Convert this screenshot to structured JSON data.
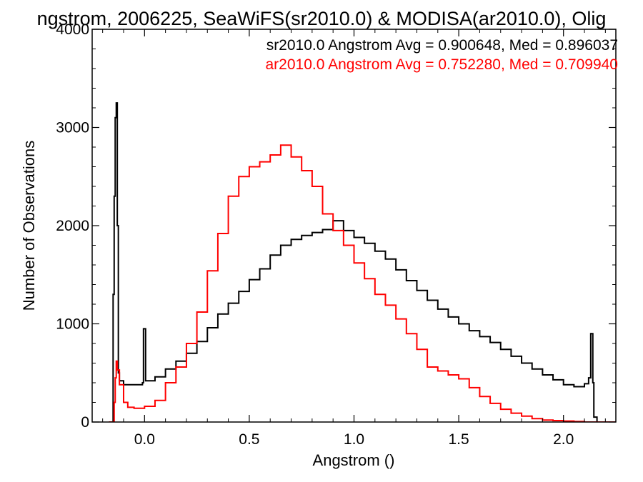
{
  "chart_data": {
    "type": "line",
    "step": true,
    "title": "ngstrom, 2006225, SeaWiFS(sr2010.0) & MODISA(ar2010.0), Olig",
    "xlabel": "Angstrom ()",
    "ylabel": "Number of Observations",
    "xlim": [
      -0.25,
      2.25
    ],
    "ylim": [
      0,
      4000
    ],
    "x_ticks": [
      0.0,
      0.5,
      1.0,
      1.5,
      2.0
    ],
    "x_tick_labels": [
      "0.0",
      "0.5",
      "1.0",
      "1.5",
      "2.0"
    ],
    "y_ticks": [
      0,
      1000,
      2000,
      3000,
      4000
    ],
    "y_tick_labels": [
      "0",
      "1000",
      "2000",
      "3000",
      "4000"
    ],
    "grid": false,
    "legend_position": "top-right",
    "legend": [
      {
        "text": "sr2010.0 Angstrom Avg = 0.900648, Med = 0.896037",
        "color": "#000000"
      },
      {
        "text": "ar2010.0 Angstrom Avg = 0.752280, Med = 0.709940",
        "color": "#ff0000"
      }
    ],
    "series": [
      {
        "color": "#000000",
        "points": [
          [
            -0.16,
            0
          ],
          [
            -0.15,
            1300
          ],
          [
            -0.145,
            2300
          ],
          [
            -0.14,
            3100
          ],
          [
            -0.135,
            3250
          ],
          [
            -0.13,
            2000
          ],
          [
            -0.125,
            500
          ],
          [
            -0.12,
            420
          ],
          [
            -0.1,
            380
          ],
          [
            -0.05,
            380
          ],
          [
            -0.01,
            400
          ],
          [
            -0.005,
            950
          ],
          [
            0.005,
            420
          ],
          [
            0.05,
            460
          ],
          [
            0.1,
            540
          ],
          [
            0.15,
            620
          ],
          [
            0.2,
            700
          ],
          [
            0.25,
            820
          ],
          [
            0.3,
            960
          ],
          [
            0.35,
            1100
          ],
          [
            0.4,
            1210
          ],
          [
            0.45,
            1330
          ],
          [
            0.5,
            1450
          ],
          [
            0.55,
            1560
          ],
          [
            0.6,
            1700
          ],
          [
            0.65,
            1800
          ],
          [
            0.7,
            1860
          ],
          [
            0.75,
            1900
          ],
          [
            0.8,
            1930
          ],
          [
            0.85,
            1960
          ],
          [
            0.9,
            2050
          ],
          [
            0.95,
            1950
          ],
          [
            1.0,
            1880
          ],
          [
            1.05,
            1820
          ],
          [
            1.1,
            1740
          ],
          [
            1.15,
            1660
          ],
          [
            1.2,
            1550
          ],
          [
            1.25,
            1440
          ],
          [
            1.3,
            1340
          ],
          [
            1.35,
            1240
          ],
          [
            1.4,
            1150
          ],
          [
            1.45,
            1070
          ],
          [
            1.5,
            1000
          ],
          [
            1.55,
            930
          ],
          [
            1.6,
            870
          ],
          [
            1.65,
            810
          ],
          [
            1.7,
            740
          ],
          [
            1.75,
            670
          ],
          [
            1.8,
            600
          ],
          [
            1.85,
            540
          ],
          [
            1.9,
            480
          ],
          [
            1.95,
            430
          ],
          [
            2.0,
            380
          ],
          [
            2.05,
            360
          ],
          [
            2.1,
            390
          ],
          [
            2.12,
            450
          ],
          [
            2.13,
            900
          ],
          [
            2.14,
            400
          ],
          [
            2.145,
            50
          ],
          [
            2.16,
            0
          ],
          [
            2.25,
            0
          ]
        ]
      },
      {
        "color": "#ff0000",
        "points": [
          [
            -0.17,
            0
          ],
          [
            -0.15,
            0
          ],
          [
            -0.145,
            200
          ],
          [
            -0.14,
            450
          ],
          [
            -0.135,
            620
          ],
          [
            -0.13,
            530
          ],
          [
            -0.12,
            380
          ],
          [
            -0.1,
            200
          ],
          [
            -0.08,
            150
          ],
          [
            -0.05,
            140
          ],
          [
            0.0,
            160
          ],
          [
            0.05,
            220
          ],
          [
            0.1,
            400
          ],
          [
            0.15,
            560
          ],
          [
            0.2,
            800
          ],
          [
            0.25,
            1120
          ],
          [
            0.3,
            1540
          ],
          [
            0.35,
            1920
          ],
          [
            0.4,
            2300
          ],
          [
            0.45,
            2500
          ],
          [
            0.5,
            2600
          ],
          [
            0.55,
            2650
          ],
          [
            0.6,
            2720
          ],
          [
            0.65,
            2820
          ],
          [
            0.7,
            2700
          ],
          [
            0.75,
            2560
          ],
          [
            0.8,
            2400
          ],
          [
            0.85,
            2120
          ],
          [
            0.9,
            1950
          ],
          [
            0.95,
            1800
          ],
          [
            1.0,
            1620
          ],
          [
            1.05,
            1460
          ],
          [
            1.1,
            1300
          ],
          [
            1.15,
            1190
          ],
          [
            1.2,
            1050
          ],
          [
            1.25,
            900
          ],
          [
            1.3,
            740
          ],
          [
            1.35,
            560
          ],
          [
            1.4,
            520
          ],
          [
            1.45,
            480
          ],
          [
            1.5,
            440
          ],
          [
            1.55,
            350
          ],
          [
            1.6,
            260
          ],
          [
            1.65,
            190
          ],
          [
            1.7,
            130
          ],
          [
            1.75,
            90
          ],
          [
            1.8,
            60
          ],
          [
            1.85,
            35
          ],
          [
            1.9,
            20
          ],
          [
            1.95,
            15
          ],
          [
            2.0,
            10
          ],
          [
            2.05,
            5
          ],
          [
            2.1,
            0
          ],
          [
            2.25,
            0
          ]
        ]
      }
    ]
  }
}
